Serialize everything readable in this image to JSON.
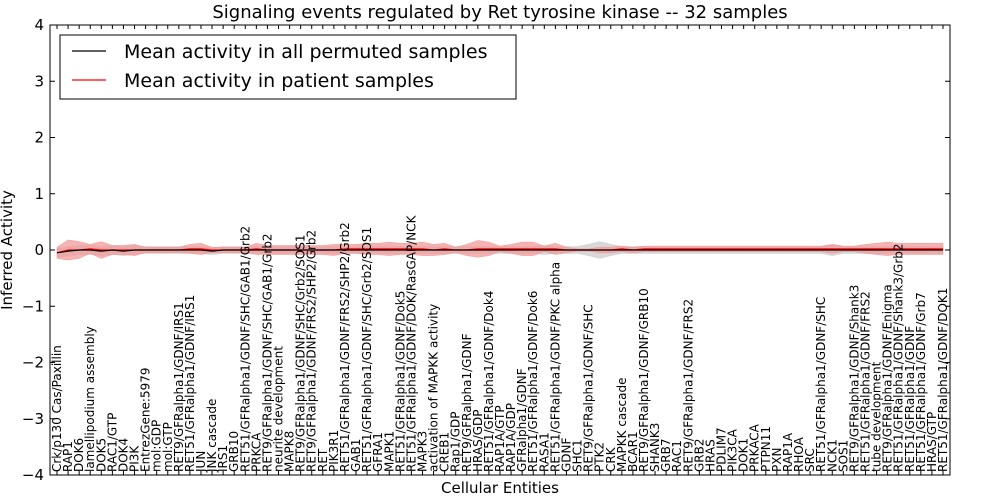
{
  "chart_data": {
    "type": "line",
    "title": "Signaling events regulated by Ret tyrosine kinase -- 32 samples",
    "xlabel": "Cellular Entities",
    "ylabel": "Inferred Activity",
    "ylim": [
      -4,
      4
    ],
    "yticks": [
      -4,
      -3,
      -2,
      -1,
      0,
      1,
      2,
      3,
      4
    ],
    "ytick_labels": [
      "−4",
      "−3",
      "−2",
      "−1",
      "0",
      "1",
      "2",
      "3",
      "4"
    ],
    "legend_position": "top-left",
    "categories": [
      "Crk/p130 Cas/Paxillin",
      "RAP1",
      "DOK6",
      "lamellipodium assembly",
      "DOK5",
      "RAC1/GTP",
      "DOK4",
      "PI3K",
      "EntrezGene:5979",
      "mol:GDP",
      "mol:GTP",
      "RET9/GFRalpha1/GDNF/IRS1",
      "RET51/GFRalpha1/GDNF/IRS1",
      "JUN",
      "JNK cascade",
      "IRS1",
      "GRB10",
      "RET51/GFRalpha1/GDNF/SHC/GAB1/Grb2",
      "PRKCA",
      "RET9/GFRalpha1/GDNF/SHC/GAB1/Grb2",
      "neurite development",
      "MAPK8",
      "RET9/GFRalpha1/GDNF/SHC/Grb2/SOS1",
      "RET9/GFRalpha1/GDNF/FRS2/SHP2/Grb2",
      "RET",
      "PIK3R1",
      "RET51/GFRalpha1/GDNF/FRS2/SHP2/Grb2",
      "GAB1",
      "RET51/GFRalpha1/GDNF/SHC/Grb2/SOS1",
      "GFRA1",
      "MAPK1",
      "RET51/GFRalpha1/GDNF/Dok5",
      "RET51/GFRalpha1/GDNF/DOK/RasGAP/NCK",
      "MAPK3",
      "activation of MAPKK activity",
      "CREB1",
      "Rap1/GDP",
      "RET9/GFRalpha1/GDNF",
      "HRAS/GDP",
      "RET51/GFRalpha1/GDNF/Dok4",
      "RAP1A/GTP",
      "RAP1A/GDP",
      "GFRalpha1/GDNF",
      "RET51/GFRalpha1/GDNF/Dok6",
      "RASA1",
      "RET51/GFRalpha1/GDNF/PKC alpha",
      "GDNF",
      "SHC1",
      "RET9/GFRalpha1/GDNF/SHC",
      "PTK2",
      "CRK",
      "MAPKK cascade",
      "BCAR1",
      "RET9/GFRalpha1/GDNF/GRB10",
      "SHANK3",
      "GRB7",
      "RAC1",
      "RET9/GFRalpha1/GDNF/FRS2",
      "GRB2",
      "HRAS",
      "PDLIM7",
      "PIK3CA",
      "DOK1",
      "PRKACA",
      "PTPN11",
      "PXN",
      "RAP1A",
      "RHOA",
      "SRC",
      "RET51/GFRalpha1/GDNF/SHC",
      "NCK1",
      "SOS1",
      "RET9/GFRalpha1/GDNF/Shank3",
      "RET51/GFRalpha1/GDNF/FRS2",
      "tube development",
      "RET9/GFRalpha1/GDNF/Enigma",
      "RET51/GFRalpha1/GDNF/Shank3/Grb2",
      "RET51/GFRalpha1/GDNF",
      "RET51/GFRalpha1/GDNF/Grb7",
      "HRAS/GTP",
      "RET51/GFRalpha1/GDNF/DOK1"
    ],
    "series": [
      {
        "name": "Mean activity in all permuted samples",
        "color": "#000000",
        "band_color": "#c8c8c8",
        "values": [
          -0.05,
          -0.02,
          0.0,
          0.0,
          -0.02,
          0.0,
          -0.02,
          0.0,
          0.0,
          0.0,
          0.0,
          0.0,
          0.0,
          0.0,
          -0.02,
          0.0,
          0.0,
          0.0,
          0.0,
          0.0,
          0.0,
          0.0,
          0.0,
          0.0,
          0.0,
          0.0,
          0.0,
          0.0,
          0.0,
          0.0,
          0.0,
          0.0,
          0.0,
          0.0,
          0.0,
          0.0,
          0.0,
          0.0,
          0.0,
          0.0,
          0.0,
          0.0,
          0.0,
          0.0,
          0.0,
          0.0,
          0.0,
          0.0,
          0.0,
          0.0,
          0.0,
          0.0,
          0.0,
          0.0,
          0.0,
          0.0,
          0.0,
          0.0,
          0.0,
          0.0,
          0.0,
          0.0,
          0.0,
          0.0,
          0.0,
          0.0,
          0.0,
          0.0,
          0.0,
          0.0,
          0.0,
          0.0,
          0.0,
          0.0,
          0.0,
          0.0,
          0.0,
          0.0,
          0.0,
          0.0,
          0.0
        ],
        "spread": [
          0.08,
          0.08,
          0.08,
          0.08,
          0.08,
          0.08,
          0.08,
          0.08,
          0.06,
          0.06,
          0.06,
          0.06,
          0.06,
          0.06,
          0.06,
          0.06,
          0.06,
          0.06,
          0.06,
          0.06,
          0.06,
          0.06,
          0.06,
          0.06,
          0.06,
          0.06,
          0.06,
          0.06,
          0.06,
          0.06,
          0.06,
          0.06,
          0.06,
          0.06,
          0.06,
          0.06,
          0.06,
          0.06,
          0.06,
          0.06,
          0.06,
          0.06,
          0.06,
          0.06,
          0.08,
          0.06,
          0.06,
          0.06,
          0.1,
          0.15,
          0.1,
          0.06,
          0.06,
          0.06,
          0.06,
          0.06,
          0.06,
          0.06,
          0.06,
          0.06,
          0.06,
          0.06,
          0.06,
          0.06,
          0.06,
          0.06,
          0.06,
          0.06,
          0.06,
          0.06,
          0.1,
          0.06,
          0.06,
          0.06,
          0.06,
          0.06,
          0.06,
          0.06,
          0.06,
          0.06,
          0.06
        ]
      },
      {
        "name": "Mean activity in patient samples",
        "color": "#ff0000",
        "band_color": "#f29999",
        "values": [
          -0.05,
          0.0,
          0.0,
          0.02,
          0.0,
          0.0,
          0.0,
          0.0,
          0.0,
          0.0,
          0.0,
          0.0,
          0.02,
          0.02,
          0.0,
          0.0,
          0.0,
          0.0,
          0.02,
          0.0,
          0.0,
          0.0,
          0.0,
          0.0,
          0.0,
          0.0,
          0.02,
          0.02,
          0.02,
          0.02,
          0.02,
          0.02,
          0.02,
          0.02,
          0.0,
          0.02,
          0.0,
          0.0,
          0.02,
          0.02,
          0.02,
          0.02,
          0.02,
          0.02,
          0.02,
          0.02,
          0.0,
          0.0,
          0.0,
          0.0,
          0.0,
          0.02,
          0.0,
          0.02,
          0.02,
          0.02,
          0.02,
          0.02,
          0.02,
          0.02,
          0.02,
          0.02,
          0.02,
          0.02,
          0.02,
          0.02,
          0.02,
          0.02,
          0.02,
          0.02,
          0.02,
          0.02,
          0.02,
          0.02,
          0.02,
          0.02,
          0.02,
          0.02,
          0.02,
          0.02,
          0.02
        ],
        "spread": [
          0.1,
          0.18,
          0.15,
          0.08,
          0.15,
          0.08,
          0.08,
          0.1,
          0.05,
          0.05,
          0.05,
          0.05,
          0.08,
          0.1,
          0.05,
          0.05,
          0.05,
          0.05,
          0.1,
          0.08,
          0.08,
          0.08,
          0.08,
          0.08,
          0.08,
          0.1,
          0.08,
          0.08,
          0.1,
          0.1,
          0.12,
          0.1,
          0.1,
          0.12,
          0.1,
          0.1,
          0.05,
          0.1,
          0.15,
          0.12,
          0.05,
          0.08,
          0.12,
          0.12,
          0.05,
          0.1,
          0.05,
          0.02,
          0.02,
          0.05,
          0.05,
          0.05,
          0.05,
          0.05,
          0.05,
          0.05,
          0.05,
          0.05,
          0.05,
          0.05,
          0.05,
          0.05,
          0.05,
          0.05,
          0.05,
          0.05,
          0.05,
          0.05,
          0.05,
          0.05,
          0.08,
          0.05,
          0.05,
          0.08,
          0.1,
          0.12,
          0.1,
          0.1,
          0.1,
          0.1,
          0.1
        ]
      }
    ]
  }
}
